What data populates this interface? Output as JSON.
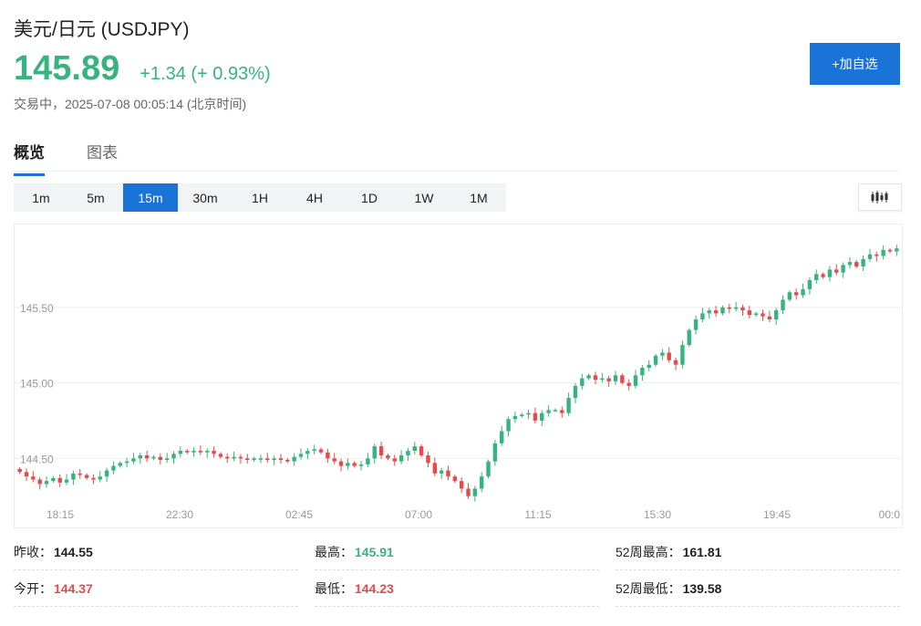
{
  "header": {
    "title": "美元/日元 (USDJPY)",
    "price": "145.89",
    "change": "+1.34 (+ 0.93%)",
    "status": "交易中，2025-07-08 00:05:14 (北京时间)",
    "add_button": "+加自选"
  },
  "tabs": [
    {
      "label": "概览",
      "active": true
    },
    {
      "label": "图表",
      "active": false
    }
  ],
  "periods": [
    {
      "label": "1m",
      "active": false
    },
    {
      "label": "5m",
      "active": false
    },
    {
      "label": "15m",
      "active": true
    },
    {
      "label": "30m",
      "active": false
    },
    {
      "label": "1H",
      "active": false
    },
    {
      "label": "4H",
      "active": false
    },
    {
      "label": "1D",
      "active": false
    },
    {
      "label": "1W",
      "active": false
    },
    {
      "label": "1M",
      "active": false
    }
  ],
  "colors": {
    "up": "#36b37e",
    "down": "#e84a4a",
    "accent": "#1a73d6"
  },
  "chart_data": {
    "type": "candlestick",
    "y_ticks": [
      144.5,
      145.0,
      145.5
    ],
    "y_tick_labels": [
      "144.50",
      "145.00",
      "145.50"
    ],
    "ylim": [
      144.2,
      146.0
    ],
    "x_tick_labels": [
      "18:15",
      "22:30",
      "02:45",
      "07:00",
      "11:15",
      "15:30",
      "19:45",
      "00:0"
    ],
    "grid": true,
    "series_close": [
      144.41,
      144.38,
      144.36,
      144.33,
      144.35,
      144.37,
      144.34,
      144.36,
      144.4,
      144.39,
      144.37,
      144.36,
      144.38,
      144.42,
      144.45,
      144.47,
      144.48,
      144.5,
      144.52,
      144.5,
      144.51,
      144.49,
      144.5,
      144.53,
      144.55,
      144.54,
      144.55,
      144.54,
      144.55,
      144.53,
      144.51,
      144.5,
      144.51,
      144.5,
      144.49,
      144.5,
      144.5,
      144.49,
      144.5,
      144.49,
      144.48,
      144.51,
      144.53,
      144.55,
      144.56,
      144.54,
      144.5,
      144.48,
      144.45,
      144.47,
      144.45,
      144.46,
      144.5,
      144.58,
      144.52,
      144.5,
      144.48,
      144.52,
      144.55,
      144.58,
      144.52,
      144.47,
      144.4,
      144.42,
      144.38,
      144.35,
      144.3,
      144.25,
      144.3,
      144.38,
      144.48,
      144.6,
      144.68,
      144.76,
      144.78,
      144.79,
      144.8,
      144.75,
      144.8,
      144.82,
      144.82,
      144.8,
      144.9,
      144.98,
      145.03,
      145.05,
      145.02,
      145.03,
      145.01,
      145.05,
      145.0,
      144.98,
      145.05,
      145.1,
      145.12,
      145.18,
      145.2,
      145.15,
      145.12,
      145.25,
      145.35,
      145.42,
      145.46,
      145.48,
      145.46,
      145.5,
      145.49,
      145.5,
      145.48,
      145.45,
      145.46,
      145.44,
      145.42,
      145.48,
      145.55,
      145.6,
      145.58,
      145.62,
      145.68,
      145.72,
      145.7,
      145.75,
      145.73,
      145.78,
      145.8,
      145.77,
      145.82,
      145.85,
      145.84,
      145.88,
      145.87,
      145.89
    ]
  },
  "stats": [
    {
      "label": "昨收：",
      "value": "144.55",
      "tone": "neutral"
    },
    {
      "label": "最高：",
      "value": "145.91",
      "tone": "up"
    },
    {
      "label": "52周最高：",
      "value": "161.81",
      "tone": "neutral"
    },
    {
      "label": "今开：",
      "value": "144.37",
      "tone": "down"
    },
    {
      "label": "最低：",
      "value": "144.23",
      "tone": "down"
    },
    {
      "label": "52周最低：",
      "value": "139.58",
      "tone": "neutral"
    }
  ]
}
